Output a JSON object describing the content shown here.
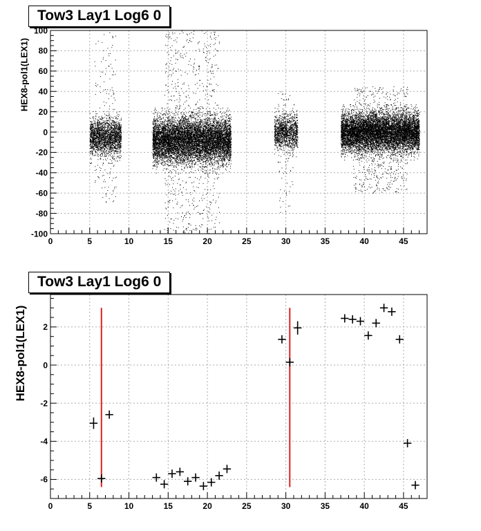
{
  "chart_data": [
    {
      "type": "scatter",
      "title": "Tow3 Lay1 Log6 0",
      "xlabel": "",
      "ylabel": "HEX8-pol1(LEX1)",
      "xlim": [
        0,
        48
      ],
      "ylim": [
        -100,
        100
      ],
      "xticks": [
        0,
        5,
        10,
        15,
        20,
        25,
        30,
        35,
        40,
        45
      ],
      "yticks": [
        -100,
        -80,
        -60,
        -40,
        -20,
        0,
        20,
        40,
        60,
        80,
        100
      ],
      "grid": true,
      "marker_color": "#000000",
      "clusters": [
        {
          "x_range": [
            5.0,
            9.0
          ],
          "y_center": -5,
          "y_spread": 16,
          "outlier_range": [
            -70,
            100
          ],
          "density": "medium"
        },
        {
          "x_range": [
            13.0,
            23.0
          ],
          "y_center": -8,
          "y_spread": 20,
          "outlier_range": [
            -100,
            100
          ],
          "density": "high"
        },
        {
          "x_range": [
            28.5,
            31.5
          ],
          "y_center": 0,
          "y_spread": 15,
          "outlier_range": [
            -80,
            40
          ],
          "density": "low"
        },
        {
          "x_range": [
            37.0,
            47.0
          ],
          "y_center": 0,
          "y_spread": 17,
          "outlier_range": [
            -60,
            45
          ],
          "density": "high"
        }
      ]
    },
    {
      "type": "scatter",
      "title": "Tow3 Lay1 Log6 0",
      "xlabel": "",
      "ylabel": "HEX8-pol1(LEX1)",
      "xlim": [
        0,
        48
      ],
      "ylim": [
        -7,
        3.7
      ],
      "xticks": [
        0,
        5,
        10,
        15,
        20,
        25,
        30,
        35,
        40,
        45
      ],
      "yticks": [
        -6,
        -4,
        -2,
        0,
        2
      ],
      "grid": true,
      "marker_color": "#000000",
      "series": [
        {
          "points": [
            {
              "x": 5.5,
              "y": -3.05,
              "ey": 0.3
            },
            {
              "x": 6.5,
              "y": -5.95,
              "ey": 0.1
            },
            {
              "x": 7.5,
              "y": -2.6,
              "ey": 0.2
            },
            {
              "x": 13.5,
              "y": -5.9,
              "ey": 0.1
            },
            {
              "x": 14.5,
              "y": -6.25,
              "ey": 0.1
            },
            {
              "x": 15.5,
              "y": -5.7,
              "ey": 0.1
            },
            {
              "x": 16.5,
              "y": -5.6,
              "ey": 0.1
            },
            {
              "x": 17.5,
              "y": -6.1,
              "ey": 0.1
            },
            {
              "x": 18.5,
              "y": -5.9,
              "ey": 0.1
            },
            {
              "x": 19.5,
              "y": -6.35,
              "ey": 0.15
            },
            {
              "x": 20.5,
              "y": -6.15,
              "ey": 0.15
            },
            {
              "x": 21.5,
              "y": -5.8,
              "ey": 0.15
            },
            {
              "x": 22.5,
              "y": -5.45,
              "ey": 0.2
            },
            {
              "x": 29.5,
              "y": 1.35,
              "ey": 0.1
            },
            {
              "x": 30.5,
              "y": 0.15,
              "ey": 0.05
            },
            {
              "x": 31.5,
              "y": 1.95,
              "ey": 0.35
            },
            {
              "x": 37.5,
              "y": 2.45,
              "ey": 0.1
            },
            {
              "x": 38.5,
              "y": 2.4,
              "ey": 0.1
            },
            {
              "x": 39.5,
              "y": 2.3,
              "ey": 0.1
            },
            {
              "x": 40.5,
              "y": 1.55,
              "ey": 0.1
            },
            {
              "x": 41.5,
              "y": 2.2,
              "ey": 0.1
            },
            {
              "x": 42.5,
              "y": 3.0,
              "ey": 0.1
            },
            {
              "x": 43.5,
              "y": 2.8,
              "ey": 0.1
            },
            {
              "x": 44.5,
              "y": 1.35,
              "ey": 0.1
            },
            {
              "x": 45.5,
              "y": -4.1,
              "ey": 0.1
            },
            {
              "x": 46.5,
              "y": -6.3,
              "ey": 0.15
            }
          ]
        }
      ],
      "reference_lines": [
        {
          "x": 6.5,
          "y_range": [
            -6.4,
            3.0
          ],
          "color": "#e02020"
        },
        {
          "x": 30.5,
          "y_range": [
            -6.4,
            3.0
          ],
          "color": "#e02020"
        }
      ]
    }
  ]
}
